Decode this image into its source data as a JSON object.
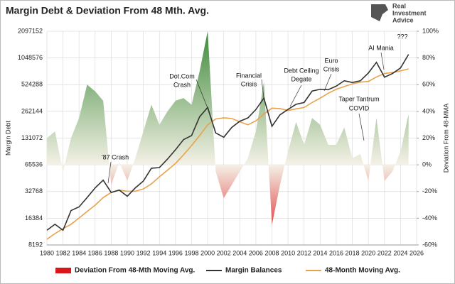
{
  "chart_data": {
    "type": "line",
    "title": "Margin Debt & Deviation From 48 Mth. Avg.",
    "logo_text": [
      "Real",
      "Investment",
      "Advice"
    ],
    "y_label": "Margin Debt",
    "y2_label": "Deviation From 48-MMA",
    "x": [
      1980,
      1981,
      1982,
      1983,
      1984,
      1985,
      1986,
      1987,
      1988,
      1989,
      1990,
      1991,
      1992,
      1993,
      1994,
      1995,
      1996,
      1997,
      1998,
      1999,
      2000,
      2001,
      2002,
      2003,
      2004,
      2005,
      2006,
      2007,
      2008,
      2009,
      2010,
      2011,
      2012,
      2013,
      2014,
      2015,
      2016,
      2017,
      2018,
      2019,
      2020,
      2021,
      2022,
      2023,
      2024,
      2025
    ],
    "xlim": [
      1980,
      2026
    ],
    "xticks": [
      1980,
      1982,
      1984,
      1986,
      1988,
      1990,
      1992,
      1994,
      1996,
      1998,
      2000,
      2002,
      2004,
      2006,
      2008,
      2010,
      2012,
      2014,
      2016,
      2018,
      2020,
      2022,
      2024,
      2026
    ],
    "ylim": [
      8192,
      2097152
    ],
    "yticks": [
      8192,
      16384,
      32768,
      65536,
      131072,
      262144,
      524288,
      1048576,
      2097152
    ],
    "log_scale": true,
    "y2lim": [
      -60,
      100
    ],
    "y2ticks": [
      {
        "value": -60,
        "label": "-60%"
      },
      {
        "value": -40,
        "label": "-40%"
      },
      {
        "value": -20,
        "label": "-20%"
      },
      {
        "value": 0,
        "label": "0%"
      },
      {
        "value": 20,
        "label": "20%"
      },
      {
        "value": 40,
        "label": "40%"
      },
      {
        "value": 60,
        "label": "60%"
      },
      {
        "value": 80,
        "label": "80%"
      },
      {
        "value": 100,
        "label": "100%"
      }
    ],
    "grid": true,
    "legend": "bottom",
    "series": [
      {
        "name": "Deviation From 48-Mth Moving Avg.",
        "type": "area",
        "axis": "y2",
        "color": "#3e8a3a",
        "negative_color": "#d9161b",
        "values": [
          20,
          25,
          -5,
          20,
          35,
          60,
          55,
          48,
          -15,
          2,
          -12,
          5,
          25,
          45,
          30,
          40,
          48,
          50,
          45,
          70,
          100,
          -5,
          -25,
          -15,
          -5,
          5,
          25,
          62,
          -45,
          -15,
          10,
          32,
          15,
          35,
          30,
          15,
          15,
          28,
          5,
          8,
          -12,
          35,
          -12,
          -5,
          10,
          38
        ]
      },
      {
        "name": "Margin Balances",
        "type": "line",
        "color": "#333333",
        "values": [
          12000,
          14000,
          12000,
          20000,
          22000,
          28000,
          36000,
          44000,
          32000,
          34000,
          29000,
          36000,
          43000,
          60000,
          61000,
          76000,
          97000,
          126000,
          140000,
          228000,
          290000,
          150000,
          134000,
          173000,
          203000,
          221000,
          275000,
          370000,
          178000,
          240000,
          276000,
          315000,
          330000,
          444000,
          465000,
          460000,
          505000,
          580000,
          555000,
          580000,
          710000,
          936000,
          637000,
          700000,
          810000,
          1150000
        ]
      },
      {
        "name": "48-Month Moving Avg.",
        "type": "line",
        "color": "#e8a24a",
        "values": [
          9500,
          11000,
          12500,
          14000,
          16500,
          19500,
          23000,
          28000,
          32000,
          34000,
          33000,
          33000,
          35000,
          40000,
          48000,
          57000,
          68000,
          85000,
          108000,
          140000,
          185000,
          215000,
          222000,
          218000,
          200000,
          185000,
          205000,
          245000,
          285000,
          282000,
          268000,
          280000,
          290000,
          330000,
          370000,
          420000,
          465000,
          500000,
          535000,
          560000,
          570000,
          640000,
          700000,
          720000,
          750000,
          790000
        ]
      }
    ],
    "annotations": [
      [
        "'87 Crash"
      ],
      [
        "Dot.Com",
        "Crash"
      ],
      [
        "Financial",
        "Crisis"
      ],
      [
        "Debt Ceiling",
        "Degate"
      ],
      [
        "Euro",
        "Crisis"
      ],
      [
        "Taper Tantrum"
      ],
      [
        "COVID"
      ],
      [
        "AI Mania"
      ],
      [
        "???"
      ]
    ]
  }
}
